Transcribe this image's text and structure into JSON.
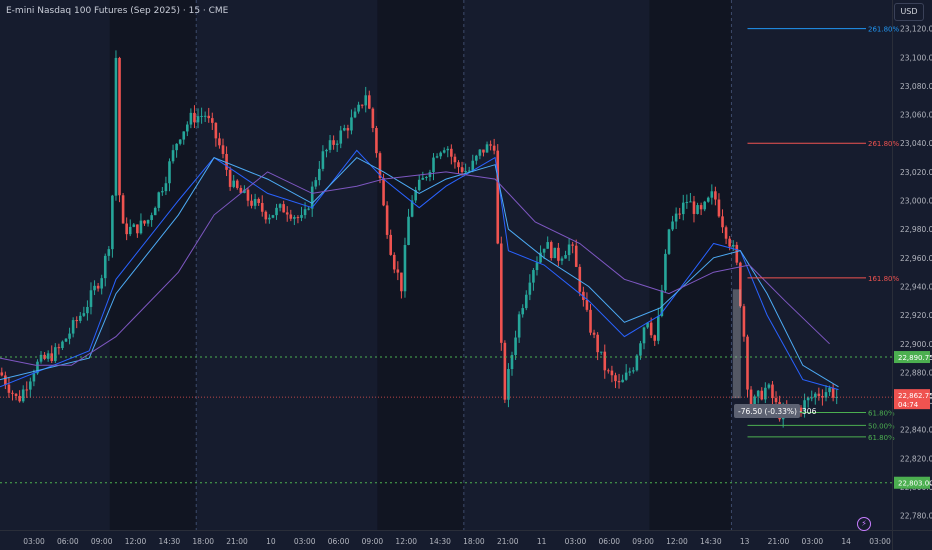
{
  "header": {
    "title": "E-mini Nasdaq 100 Futures (Sep 2025) · 15 · CME",
    "currency_button": "USD"
  },
  "colors": {
    "background": "#161c2e",
    "session_shade": "#111522",
    "up": "#26a69a",
    "down": "#ef5350",
    "ma_fast": "#2962ff",
    "ma_mid": "#4dabf5",
    "ma_slow": "#7e57c2",
    "fib_blue": "#2196f3",
    "fib_red": "#ef5350",
    "fib_green": "#4caf50",
    "green_line": "#4caf50"
  },
  "chart_data": {
    "type": "candlestick",
    "ylim": [
      22770,
      23140
    ],
    "y_ticks": [
      "22,780.00",
      "22,800.00",
      "22,820.00",
      "22,840.00",
      "22,860.00",
      "22,880.00",
      "22,900.00",
      "22,920.00",
      "22,940.00",
      "22,960.00",
      "22,980.00",
      "23,000.00",
      "23,020.00",
      "23,040.00",
      "23,060.00",
      "23,080.00",
      "23,100.00",
      "23,120.00"
    ],
    "x_ticks": [
      "03:00",
      "06:00",
      "09:00",
      "12:00",
      "14:30",
      "18:00",
      "21:00",
      "10",
      "03:00",
      "06:00",
      "09:00",
      "12:00",
      "14:30",
      "18:00",
      "21:00",
      "11",
      "03:00",
      "06:00",
      "09:00",
      "12:00",
      "14:30",
      "13",
      "21:00",
      "03:00",
      "14",
      "03:00"
    ],
    "shaded_sessions": [
      [
        0.123,
        0.22
      ],
      [
        0.423,
        0.52
      ],
      [
        0.728,
        0.82
      ]
    ],
    "vertical_dashed": [
      0.22,
      0.52,
      0.82
    ],
    "keypoints": [
      [
        0,
        22880
      ],
      [
        0.02,
        22860
      ],
      [
        0.04,
        22885
      ],
      [
        0.065,
        22895
      ],
      [
        0.1,
        22930
      ],
      [
        0.115,
        22950
      ],
      [
        0.125,
        22980
      ],
      [
        0.13,
        23100
      ],
      [
        0.135,
        22980
      ],
      [
        0.15,
        22980
      ],
      [
        0.165,
        22985
      ],
      [
        0.185,
        23015
      ],
      [
        0.2,
        23045
      ],
      [
        0.215,
        23058
      ],
      [
        0.23,
        23060
      ],
      [
        0.245,
        23040
      ],
      [
        0.26,
        23010
      ],
      [
        0.28,
        23000
      ],
      [
        0.3,
        22990
      ],
      [
        0.32,
        22995
      ],
      [
        0.34,
        22985
      ],
      [
        0.36,
        23030
      ],
      [
        0.38,
        23045
      ],
      [
        0.4,
        23060
      ],
      [
        0.41,
        23075
      ],
      [
        0.42,
        23045
      ],
      [
        0.43,
        22995
      ],
      [
        0.44,
        22960
      ],
      [
        0.45,
        22940
      ],
      [
        0.46,
        23000
      ],
      [
        0.475,
        23015
      ],
      [
        0.49,
        23035
      ],
      [
        0.5,
        23040
      ],
      [
        0.51,
        23025
      ],
      [
        0.525,
        23020
      ],
      [
        0.54,
        23035
      ],
      [
        0.555,
        23040
      ],
      [
        0.56,
        22920
      ],
      [
        0.565,
        22860
      ],
      [
        0.58,
        22915
      ],
      [
        0.595,
        22950
      ],
      [
        0.61,
        22970
      ],
      [
        0.625,
        22960
      ],
      [
        0.64,
        22970
      ],
      [
        0.655,
        22925
      ],
      [
        0.665,
        22905
      ],
      [
        0.68,
        22880
      ],
      [
        0.695,
        22870
      ],
      [
        0.71,
        22885
      ],
      [
        0.725,
        22920
      ],
      [
        0.735,
        22900
      ],
      [
        0.75,
        22980
      ],
      [
        0.77,
        23000
      ],
      [
        0.785,
        22990
      ],
      [
        0.8,
        23005
      ],
      [
        0.81,
        22985
      ],
      [
        0.825,
        22960
      ],
      [
        0.835,
        22900
      ],
      [
        0.84,
        22855
      ],
      [
        0.86,
        22870
      ],
      [
        0.875,
        22850
      ],
      [
        0.895,
        22855
      ],
      [
        0.915,
        22865
      ],
      [
        0.93,
        22868
      ],
      [
        0.94,
        22862
      ]
    ],
    "moving_averages": [
      {
        "key": "ma_fast",
        "points": [
          [
            0,
            22870
          ],
          [
            0.1,
            22895
          ],
          [
            0.13,
            22945
          ],
          [
            0.2,
            23000
          ],
          [
            0.24,
            23030
          ],
          [
            0.3,
            23005
          ],
          [
            0.35,
            22995
          ],
          [
            0.4,
            23035
          ],
          [
            0.43,
            23015
          ],
          [
            0.47,
            22995
          ],
          [
            0.5,
            23010
          ],
          [
            0.555,
            23030
          ],
          [
            0.57,
            22965
          ],
          [
            0.61,
            22955
          ],
          [
            0.66,
            22930
          ],
          [
            0.7,
            22905
          ],
          [
            0.74,
            22920
          ],
          [
            0.8,
            22970
          ],
          [
            0.83,
            22965
          ],
          [
            0.86,
            22920
          ],
          [
            0.9,
            22875
          ],
          [
            0.94,
            22868
          ]
        ]
      },
      {
        "key": "ma_mid",
        "points": [
          [
            0,
            22875
          ],
          [
            0.1,
            22890
          ],
          [
            0.13,
            22935
          ],
          [
            0.2,
            22990
          ],
          [
            0.24,
            23030
          ],
          [
            0.3,
            23015
          ],
          [
            0.35,
            22998
          ],
          [
            0.4,
            23030
          ],
          [
            0.43,
            23020
          ],
          [
            0.47,
            23005
          ],
          [
            0.5,
            23015
          ],
          [
            0.555,
            23025
          ],
          [
            0.57,
            22980
          ],
          [
            0.61,
            22960
          ],
          [
            0.66,
            22940
          ],
          [
            0.7,
            22915
          ],
          [
            0.74,
            22925
          ],
          [
            0.8,
            22960
          ],
          [
            0.83,
            22965
          ],
          [
            0.86,
            22935
          ],
          [
            0.9,
            22885
          ],
          [
            0.94,
            22870
          ]
        ]
      },
      {
        "key": "ma_slow",
        "points": [
          [
            0,
            22890
          ],
          [
            0.04,
            22885
          ],
          [
            0.08,
            22885
          ],
          [
            0.13,
            22905
          ],
          [
            0.2,
            22950
          ],
          [
            0.24,
            22990
          ],
          [
            0.3,
            23020
          ],
          [
            0.35,
            23005
          ],
          [
            0.4,
            23010
          ],
          [
            0.43,
            23015
          ],
          [
            0.5,
            23020
          ],
          [
            0.555,
            23015
          ],
          [
            0.6,
            22985
          ],
          [
            0.65,
            22970
          ],
          [
            0.7,
            22945
          ],
          [
            0.75,
            22935
          ],
          [
            0.8,
            22950
          ],
          [
            0.84,
            22955
          ],
          [
            0.88,
            22930
          ],
          [
            0.93,
            22900
          ]
        ]
      }
    ],
    "fib_levels": [
      {
        "label": "261.80%",
        "value": 23120,
        "color_key": "fib_blue",
        "x_start": 0.838
      },
      {
        "label": "261.80%",
        "value": 23040,
        "color_key": "fib_red",
        "x_start": 0.838
      },
      {
        "label": "161.80%",
        "value": 22946,
        "color_key": "fib_red",
        "x_start": 0.838
      },
      {
        "label": "61.80%",
        "value": 22852,
        "color_key": "fib_green",
        "x_start": 0.838
      },
      {
        "label": "50.00%",
        "value": 22843,
        "color_key": "fib_green",
        "x_start": 0.838
      },
      {
        "label": "61.80%",
        "value": 22835,
        "color_key": "fib_green",
        "x_start": 0.838
      }
    ],
    "horizontal_lines": [
      {
        "value": 22890.75,
        "label": "22,890.75",
        "style": "dotted"
      },
      {
        "value": 22803.0,
        "label": "22,803.00",
        "style": "dotted"
      }
    ],
    "current_price": {
      "value": 22862.75,
      "label": "22,862.75",
      "countdown": "04:74"
    },
    "measure": {
      "label": "-76.50 (-0.33%) -306",
      "from": 22938,
      "to": 22862,
      "x": 0.826
    }
  }
}
